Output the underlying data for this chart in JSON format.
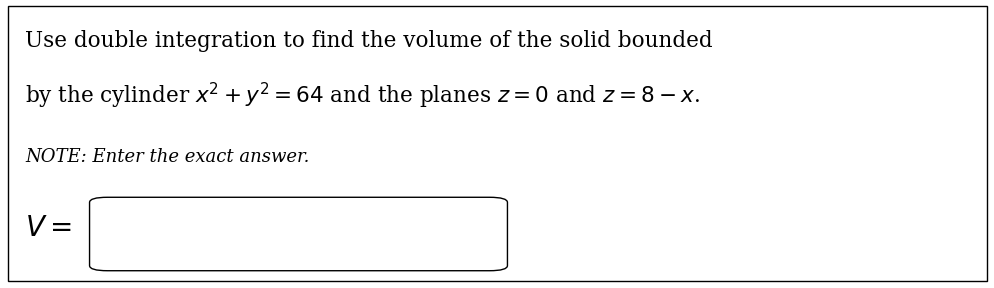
{
  "background_color": "#ffffff",
  "border_color": "#000000",
  "line1": "Use double integration to find the volume of the solid bounded",
  "line2": "by the cylinder $x^2 + y^2 = 64$ and the planes $z = 0$ and $z = 8 - x$.",
  "note_text": "NOTE: Enter the exact answer.",
  "v_label": "$V =$",
  "main_fontsize": 15.5,
  "note_fontsize": 13.0,
  "v_fontsize": 20,
  "text_color": "#000000",
  "figsize": [
    9.95,
    2.88
  ],
  "dpi": 100
}
